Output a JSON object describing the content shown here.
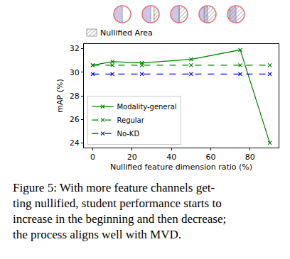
{
  "chart_data": {
    "type": "line",
    "annotations": [
      "Nullified Area"
    ],
    "x_label": "Nullified feature dimension ratio (%)",
    "y_label": "mAP (%)",
    "x": [
      0,
      10,
      25,
      50,
      75,
      90
    ],
    "series": [
      {
        "name": "Modality-general",
        "color": "#008000",
        "line_style": "solid",
        "marker": "x",
        "values": [
          30.6,
          30.9,
          30.8,
          31.1,
          31.9,
          24.0
        ]
      },
      {
        "name": "Regular",
        "color": "#008000",
        "line_style": "dashed",
        "marker": "x",
        "values": [
          30.6,
          30.6,
          30.6,
          30.6,
          30.6,
          30.6
        ]
      },
      {
        "name": "No-KD",
        "color": "#0000ff",
        "line_style": "dashed",
        "marker": "x",
        "values": [
          29.85,
          29.85,
          29.85,
          29.85,
          29.85,
          29.85
        ]
      }
    ],
    "xlim": [
      -4.5,
      94.5
    ],
    "ylim": [
      23.6,
      32.4
    ],
    "xticks": [
      0,
      20,
      40,
      60,
      80
    ],
    "yticks": [
      24,
      26,
      28,
      30,
      32
    ],
    "legend": "lower left",
    "grid": false,
    "caption": [
      "Figure 5: With more feature channels get-",
      "ting nullified, student performance starts to",
      "increase in the beginning and then decrease;",
      "the process aligns well with MVD."
    ]
  }
}
